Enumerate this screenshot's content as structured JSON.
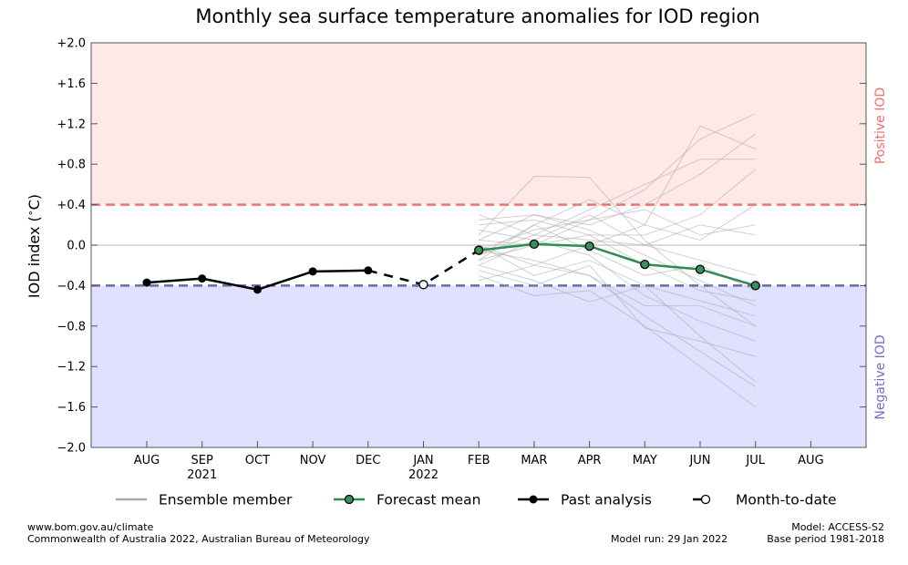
{
  "chart_data": {
    "type": "line",
    "title": "Monthly sea surface temperature anomalies for IOD region",
    "ylabel": "IOD index (°C)",
    "ylabel_main": "IOD index (",
    "ylabel_deg": "∘",
    "ylabel_unit": "C)",
    "ylim": [
      -2.0,
      2.0
    ],
    "yticks": [
      {
        "v": 2.0,
        "label": "+2.0"
      },
      {
        "v": 1.6,
        "label": "+1.6"
      },
      {
        "v": 1.2,
        "label": "+1.2"
      },
      {
        "v": 0.8,
        "label": "+0.8"
      },
      {
        "v": 0.4,
        "label": "+0.4"
      },
      {
        "v": 0.0,
        "label": "0.0"
      },
      {
        "v": -0.4,
        "label": "−0.4"
      },
      {
        "v": -0.8,
        "label": "−0.8"
      },
      {
        "v": -1.2,
        "label": "−1.2"
      },
      {
        "v": -1.6,
        "label": "−1.6"
      },
      {
        "v": -2.0,
        "label": "−2.0"
      }
    ],
    "months": [
      "AUG",
      "SEP",
      "OCT",
      "NOV",
      "DEC",
      "JAN",
      "FEB",
      "MAR",
      "APR",
      "MAY",
      "JUN",
      "JUL",
      "AUG"
    ],
    "year_labels": [
      {
        "month_index": 1,
        "label": "2021"
      },
      {
        "month_index": 5,
        "label": "2022"
      }
    ],
    "thresholds": {
      "positive": 0.4,
      "negative": -0.4
    },
    "region_labels": {
      "positive": "Positive IOD",
      "negative": "Negative IOD"
    },
    "colors": {
      "positive_fill": "#ffe8e8",
      "negative_fill": "#e0e0ff",
      "positive_line": "#f07070",
      "negative_line": "#6a6ab0",
      "positive_text": "#f07070",
      "negative_text": "#7070c0",
      "forecast": "#2e8b57",
      "forecast_marker": "#3c8f5c",
      "ensemble": "#aaaaaa"
    },
    "series": [
      {
        "name": "Past analysis",
        "style": "solid-black",
        "points": [
          {
            "month_index": 0,
            "y": -0.37
          },
          {
            "month_index": 1,
            "y": -0.33
          },
          {
            "month_index": 2,
            "y": -0.44
          },
          {
            "month_index": 3,
            "y": -0.26
          },
          {
            "month_index": 4,
            "y": -0.25
          }
        ]
      },
      {
        "name": "Month-to-date",
        "style": "dashed-black",
        "points": [
          {
            "month_index": 4,
            "y": -0.25
          },
          {
            "month_index": 5,
            "y": -0.39
          },
          {
            "month_index": 6,
            "y": -0.05
          }
        ],
        "open_marker_index": 5
      },
      {
        "name": "Forecast mean",
        "style": "green",
        "points": [
          {
            "month_index": 6,
            "y": -0.05
          },
          {
            "month_index": 7,
            "y": 0.01
          },
          {
            "month_index": 8,
            "y": -0.01
          },
          {
            "month_index": 9,
            "y": -0.19
          },
          {
            "month_index": 10,
            "y": -0.24
          },
          {
            "month_index": 11,
            "y": -0.4
          }
        ]
      }
    ],
    "ensemble": {
      "name": "Ensemble member",
      "first_month_index": 6,
      "members": [
        [
          -0.05,
          0.15,
          0.25,
          0.55,
          1.05,
          1.3
        ],
        [
          0.05,
          0.3,
          0.2,
          0.4,
          0.7,
          1.1
        ],
        [
          -0.1,
          0.1,
          0.35,
          0.6,
          0.85,
          0.85
        ],
        [
          0.1,
          0.68,
          0.67,
          0.05,
          -0.4,
          -0.8
        ],
        [
          -0.15,
          0.2,
          0.45,
          0.2,
          1.18,
          0.95
        ],
        [
          0.2,
          0.25,
          0.1,
          0.1,
          0.3,
          0.75
        ],
        [
          -0.3,
          -0.5,
          -0.45,
          -0.8,
          -1.2,
          -1.6
        ],
        [
          -0.2,
          -0.35,
          -0.56,
          -0.4,
          -0.9,
          -1.35
        ],
        [
          0.0,
          -0.2,
          -0.3,
          -0.7,
          -1.05,
          -1.4
        ],
        [
          -0.25,
          -0.4,
          -0.2,
          -0.82,
          -0.95,
          -1.1
        ],
        [
          0.15,
          0.05,
          -0.1,
          -0.5,
          -0.75,
          -0.95
        ],
        [
          -0.05,
          -0.15,
          -0.3,
          -0.6,
          -0.6,
          -0.8
        ],
        [
          0.25,
          0.3,
          0.15,
          -0.1,
          -0.35,
          -0.6
        ],
        [
          -0.35,
          -0.2,
          0.0,
          0.2,
          0.05,
          0.4
        ],
        [
          0.05,
          0.0,
          0.25,
          0.35,
          0.1,
          0.2
        ],
        [
          -0.1,
          0.2,
          -0.05,
          -0.3,
          -0.2,
          -0.45
        ],
        [
          0.3,
          0.1,
          0.05,
          0.0,
          -0.15,
          -0.3
        ],
        [
          -0.2,
          0.05,
          0.3,
          0.0,
          0.2,
          0.1
        ],
        [
          0.0,
          -0.3,
          -0.15,
          -0.4,
          -0.55,
          -0.7
        ],
        [
          -0.15,
          0.0,
          0.1,
          -0.2,
          -0.45,
          -0.55
        ]
      ]
    },
    "legend": [
      {
        "label": "Ensemble member",
        "style": "ensemble"
      },
      {
        "label": "Forecast mean",
        "style": "forecast"
      },
      {
        "label": "Past analysis",
        "style": "past"
      },
      {
        "label": "Month-to-date",
        "style": "mtd"
      }
    ],
    "legend_placement": "bottom",
    "grid": false
  },
  "footer": {
    "left1": "www.bom.gov.au/climate",
    "left2": "Commonwealth of Australia 2022, Australian Bureau of Meteorology",
    "model_run": "Model run: 29 Jan 2022",
    "model": "Model: ACCESS-S2",
    "base_period": "Base period 1981-2018"
  }
}
